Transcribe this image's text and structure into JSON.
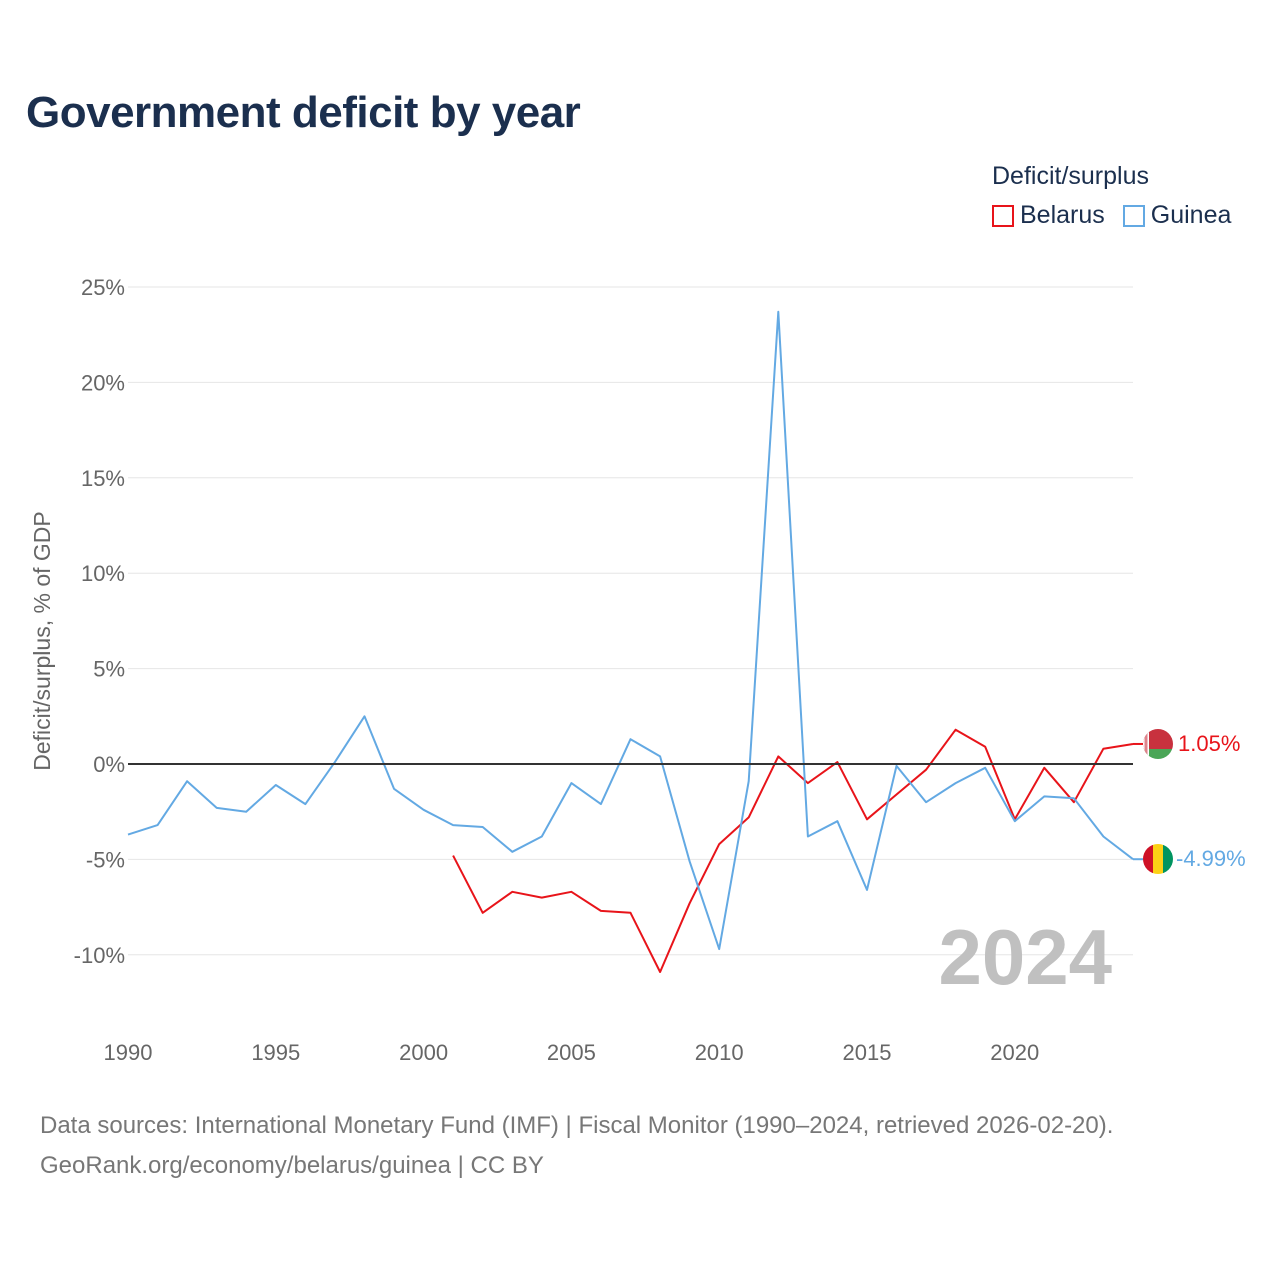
{
  "title": "Government deficit by year",
  "legend": {
    "title": "Deficit/surplus",
    "items": [
      {
        "label": "Belarus",
        "color": "#e8141a"
      },
      {
        "label": "Guinea",
        "color": "#63a9e3"
      }
    ]
  },
  "footer": {
    "line1": "Data sources: International Monetary Fund (IMF) | Fiscal Monitor (1990–2024, retrieved 2026-02-20).",
    "line2": "GeoRank.org/economy/belarus/guinea | CC BY"
  },
  "chart_data": {
    "type": "line",
    "title": "Government deficit by year",
    "xlabel": "",
    "ylabel": "Deficit/surplus, % of GDP",
    "xlim": [
      1990,
      2024
    ],
    "ylim": [
      -12.5,
      25
    ],
    "x_ticks": [
      1990,
      1995,
      2000,
      2005,
      2010,
      2015,
      2020
    ],
    "y_ticks": [
      {
        "value": 25,
        "label": "25%"
      },
      {
        "value": 20,
        "label": "20%"
      },
      {
        "value": 15,
        "label": "15%"
      },
      {
        "value": 10,
        "label": "10%"
      },
      {
        "value": 5,
        "label": "5%"
      },
      {
        "value": 0,
        "label": "0%"
      },
      {
        "value": -5,
        "label": "-5%"
      },
      {
        "value": -10,
        "label": "-10%"
      }
    ],
    "watermark": "2024",
    "series": [
      {
        "name": "Belarus",
        "color": "#e8141a",
        "end_label": "1.05%",
        "flag": "belarus-flag",
        "points": [
          [
            2001,
            -4.8
          ],
          [
            2002,
            -7.8
          ],
          [
            2003,
            -6.7
          ],
          [
            2004,
            -7.0
          ],
          [
            2005,
            -6.7
          ],
          [
            2006,
            -7.7
          ],
          [
            2007,
            -7.8
          ],
          [
            2008,
            -10.9
          ],
          [
            2009,
            -7.3
          ],
          [
            2010,
            -4.2
          ],
          [
            2011,
            -2.8
          ],
          [
            2012,
            0.4
          ],
          [
            2013,
            -1.0
          ],
          [
            2014,
            0.1
          ],
          [
            2015,
            -2.9
          ],
          [
            2016,
            -1.6
          ],
          [
            2017,
            -0.3
          ],
          [
            2018,
            1.8
          ],
          [
            2019,
            0.9
          ],
          [
            2020,
            -2.9
          ],
          [
            2021,
            -0.2
          ],
          [
            2022,
            -2.0
          ],
          [
            2023,
            0.8
          ],
          [
            2024,
            1.05
          ]
        ]
      },
      {
        "name": "Guinea",
        "color": "#63a9e3",
        "end_label": "-4.99%",
        "flag": "guinea-flag",
        "points": [
          [
            1990,
            -3.7
          ],
          [
            1991,
            -3.2
          ],
          [
            1992,
            -0.9
          ],
          [
            1993,
            -2.3
          ],
          [
            1994,
            -2.5
          ],
          [
            1995,
            -1.1
          ],
          [
            1996,
            -2.1
          ],
          [
            1997,
            0.1
          ],
          [
            1998,
            2.5
          ],
          [
            1999,
            -1.3
          ],
          [
            2000,
            -2.4
          ],
          [
            2001,
            -3.2
          ],
          [
            2002,
            -3.3
          ],
          [
            2003,
            -4.6
          ],
          [
            2004,
            -3.8
          ],
          [
            2005,
            -1.0
          ],
          [
            2006,
            -2.1
          ],
          [
            2007,
            1.3
          ],
          [
            2008,
            0.4
          ],
          [
            2009,
            -5.1
          ],
          [
            2010,
            -9.7
          ],
          [
            2011,
            -0.9
          ],
          [
            2012,
            23.7
          ],
          [
            2013,
            -3.8
          ],
          [
            2014,
            -3.0
          ],
          [
            2015,
            -6.6
          ],
          [
            2016,
            -0.1
          ],
          [
            2017,
            -2.0
          ],
          [
            2018,
            -1.0
          ],
          [
            2019,
            -0.2
          ],
          [
            2020,
            -3.0
          ],
          [
            2021,
            -1.7
          ],
          [
            2022,
            -1.8
          ],
          [
            2023,
            -3.8
          ],
          [
            2024,
            -4.99
          ]
        ]
      }
    ]
  }
}
